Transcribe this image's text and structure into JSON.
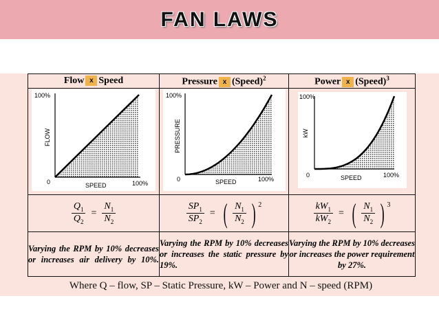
{
  "title": "FAN LAWS",
  "headers": [
    {
      "left": "Flow",
      "mark": "x",
      "right": "Speed",
      "exp": ""
    },
    {
      "left": "Pressure",
      "mark": "x",
      "right": "(Speed)",
      "exp": "2"
    },
    {
      "left": "Power",
      "mark": "x",
      "right": "(Speed)",
      "exp": "3"
    }
  ],
  "graphs": [
    {
      "ytop": "100%",
      "ylabel": "FLOW",
      "origin": "0",
      "xlabel": "SPEED",
      "xend": "100%"
    },
    {
      "ytop": "100%",
      "ylabel": "PRESSURE",
      "origin": "0",
      "xlabel": "SPEED",
      "xend": "100%"
    },
    {
      "ytop": "100%",
      "ylabel": "kW",
      "origin": "0",
      "xlabel": "SPEED",
      "xend": "100%"
    }
  ],
  "formulas": [
    {
      "lhs_num": "Q",
      "lhs_num_sub": "1",
      "lhs_den": "Q",
      "lhs_den_sub": "2",
      "rhs_num": "N",
      "rhs_num_sub": "1",
      "rhs_den": "N",
      "rhs_den_sub": "2",
      "power": ""
    },
    {
      "lhs_num": "SP",
      "lhs_num_sub": "1",
      "lhs_den": "SP",
      "lhs_den_sub": "2",
      "rhs_num": "N",
      "rhs_num_sub": "1",
      "rhs_den": "N",
      "rhs_den_sub": "2",
      "power": "2"
    },
    {
      "lhs_num": "kW",
      "lhs_num_sub": "1",
      "lhs_den": "kW",
      "lhs_den_sub": "2",
      "rhs_num": "N",
      "rhs_num_sub": "1",
      "rhs_den": "N",
      "rhs_den_sub": "2",
      "power": "3"
    }
  ],
  "descriptions": [
    "Varying the RPM by 10% decreases or increases air delivery by 10%.",
    "Varying the RPM by 10% decreases or increases the static pressure by 19%.",
    "Varying the RPM by 10% decreases or increases the power requirement by 27%."
  ],
  "footnote": "Where Q – flow, SP – Static Pressure, kW – Power and N – speed (RPM)"
}
